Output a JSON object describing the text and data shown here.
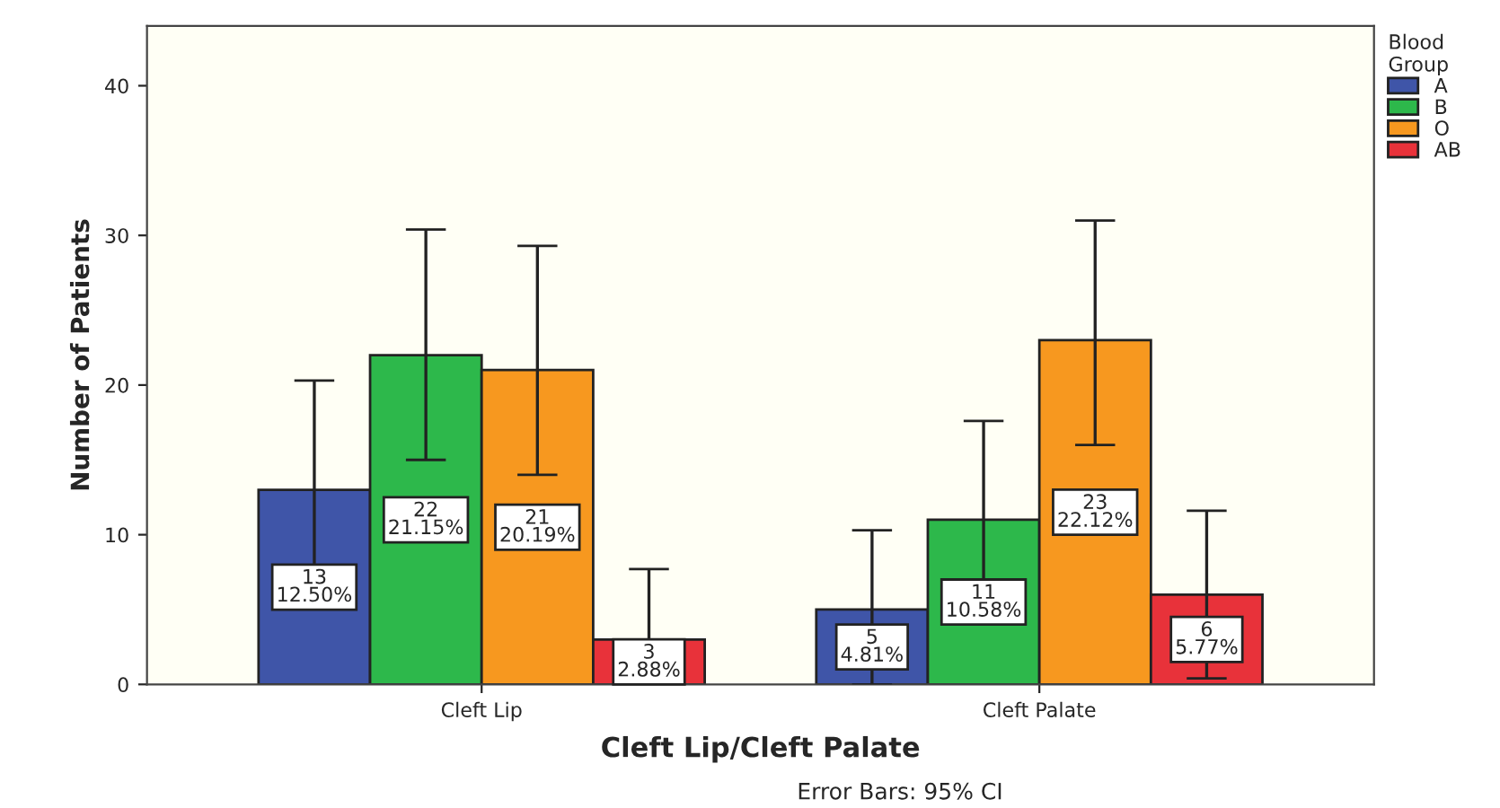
{
  "chart_data": {
    "type": "bar",
    "xlabel": "Cleft Lip/Cleft Palate",
    "ylabel": "Number of Patients",
    "legend_title": "Blood\nGroup",
    "categories": [
      "Cleft Lip",
      "Cleft Palate"
    ],
    "series": [
      {
        "name": "A",
        "color": "#3f55a8",
        "values": [
          13,
          5
        ],
        "errors": [
          [
            5.7,
            20.3
          ],
          [
            0,
            10.3
          ]
        ],
        "value_labels": [
          "13\n12.50%",
          "5\n4.81%"
        ]
      },
      {
        "name": "B",
        "color": "#2db84b",
        "values": [
          22,
          11
        ],
        "errors": [
          [
            15,
            30.4
          ],
          [
            4.4,
            17.6
          ]
        ],
        "value_labels": [
          "22\n21.15%",
          "11\n10.58%"
        ]
      },
      {
        "name": "O",
        "color": "#f7981f",
        "values": [
          21,
          23
        ],
        "errors": [
          [
            14,
            29.3
          ],
          [
            16,
            31
          ]
        ],
        "value_labels": [
          "21\n20.19%",
          "23\n22.12%"
        ]
      },
      {
        "name": "AB",
        "color": "#e8323a",
        "values": [
          3,
          6
        ],
        "errors": [
          [
            0,
            7.7
          ],
          [
            0.4,
            11.6
          ]
        ],
        "value_labels": [
          "3\n2.88%",
          "6\n5.77%"
        ]
      }
    ],
    "ylim": [
      0,
      44
    ],
    "yticks": [
      0,
      10,
      20,
      30,
      40
    ],
    "grid": false,
    "legend": "top right",
    "annotations": [
      "Error Bars: 95% CI"
    ]
  }
}
